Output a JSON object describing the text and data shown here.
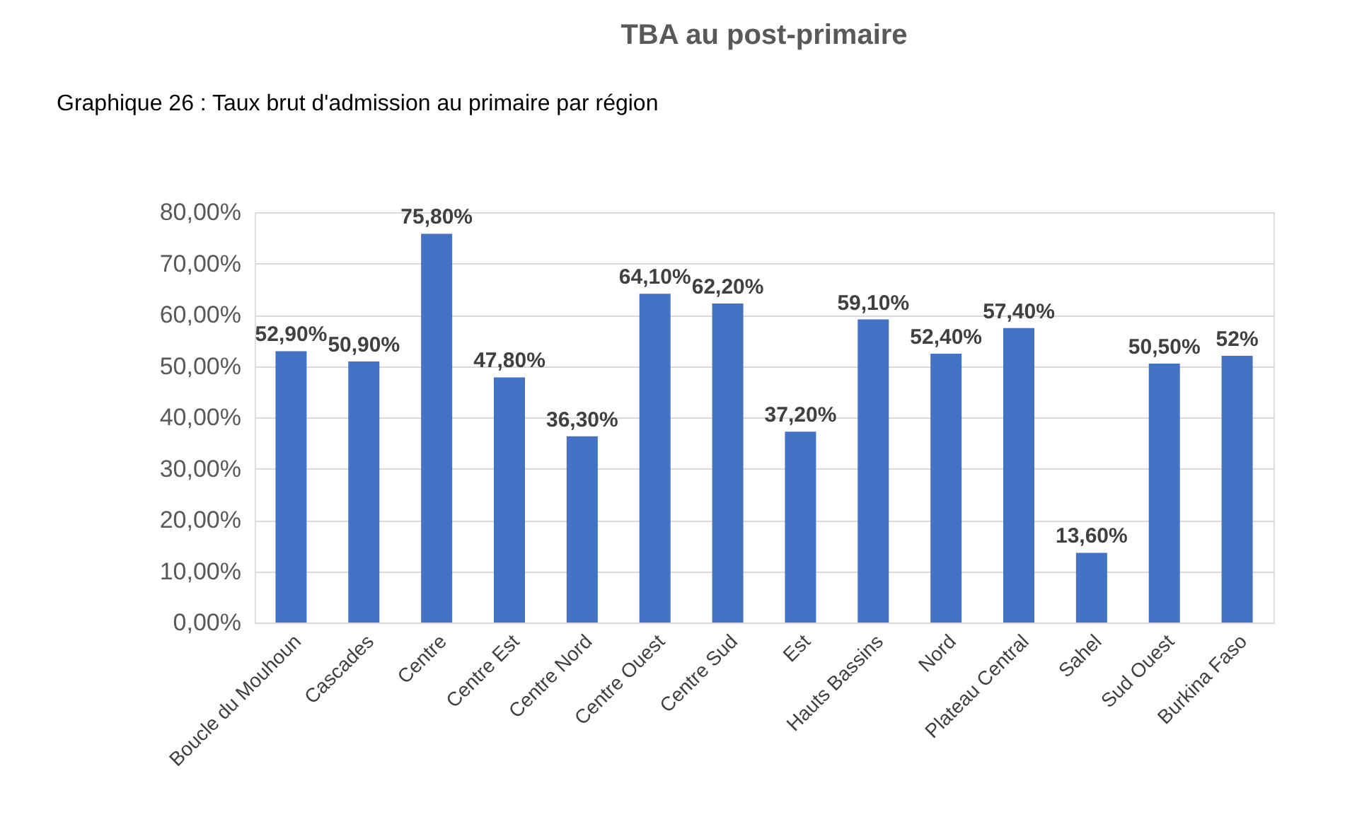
{
  "chart_data": {
    "type": "bar",
    "title": "TBA au post-primaire",
    "annotations": [
      "Graphique 26 : Taux brut d'admission au primaire par région"
    ],
    "categories": [
      "Boucle du Mouhoun",
      "Cascades",
      "Centre",
      "Centre Est",
      "Centre Nord",
      "Centre Ouest",
      "Centre Sud",
      "Est",
      "Hauts Bassins",
      "Nord",
      "Plateau Central",
      "Sahel",
      "Sud Ouest",
      "Burkina Faso"
    ],
    "values": [
      52.9,
      50.9,
      75.8,
      47.8,
      36.3,
      64.1,
      62.2,
      37.2,
      59.1,
      52.4,
      57.4,
      13.6,
      50.5,
      52
    ],
    "value_labels": [
      "52,90%",
      "50,90%",
      "75,80%",
      "47,80%",
      "36,30%",
      "64,10%",
      "62,20%",
      "37,20%",
      "59,10%",
      "52,40%",
      "57,40%",
      "13,60%",
      "50,50%",
      "52%"
    ],
    "color": "#4472c4",
    "ylim": [
      0,
      80
    ],
    "yticks": [
      {
        "value": 0,
        "label": "0,00%"
      },
      {
        "value": 10,
        "label": "10,00%"
      },
      {
        "value": 20,
        "label": "20,00%"
      },
      {
        "value": 30,
        "label": "30,00%"
      },
      {
        "value": 40,
        "label": "40,00%"
      },
      {
        "value": 50,
        "label": "50,00%"
      },
      {
        "value": 60,
        "label": "60,00%"
      },
      {
        "value": 70,
        "label": "70,00%"
      },
      {
        "value": 80,
        "label": "80,00%"
      }
    ],
    "grid": "y"
  }
}
